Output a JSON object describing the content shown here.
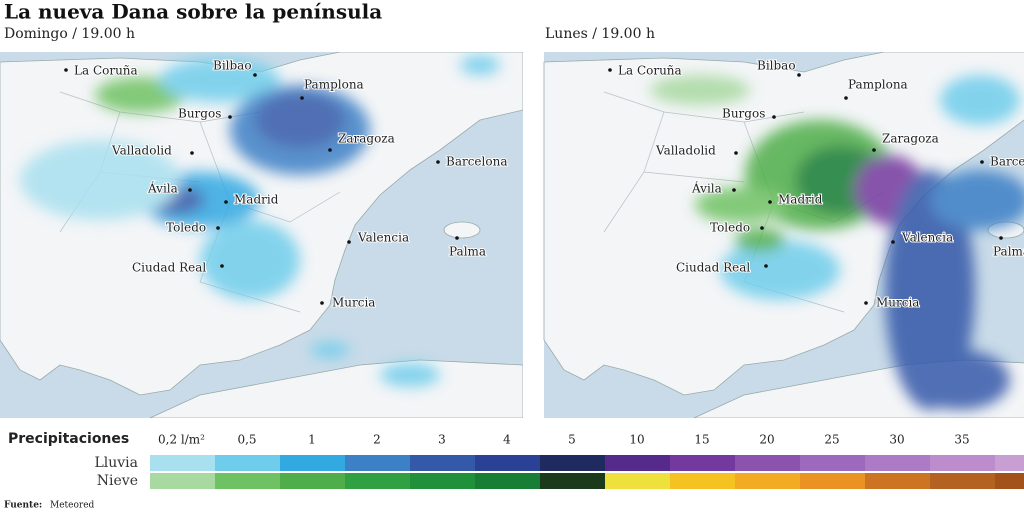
{
  "header": {
    "title": "La nueva Dana sobre la península"
  },
  "maps": [
    {
      "label": "Domingo / 19.00 h",
      "cities": [
        "La Coruña",
        "Bilbao",
        "Pamplona",
        "Burgos",
        "Zaragoza",
        "Barcelona",
        "Valladolid",
        "Ávila",
        "Madrid",
        "Toledo",
        "Valencia",
        "Palma",
        "Ciudad Real",
        "Murcia"
      ]
    },
    {
      "label": "Lunes / 19.00 h",
      "cities": [
        "La Coruña",
        "Bilbao",
        "Pamplona",
        "Burgos",
        "Zaragoza",
        "Barcelona",
        "Valladolid",
        "Ávila",
        "Madrid",
        "Toledo",
        "Valencia",
        "Palma",
        "Ciudad Real",
        "Murcia"
      ]
    }
  ],
  "legend": {
    "title": "Precipitaciones",
    "ticks": [
      "0,2 l/m²",
      "0,5",
      "1",
      "2",
      "3",
      "4",
      "5",
      "10",
      "15",
      "20",
      "25",
      "30",
      "35"
    ],
    "rows": [
      {
        "name": "Lluvia",
        "colors": [
          "#a9e0ef",
          "#6fcdeb",
          "#33a9e2",
          "#3c80c6",
          "#3459a9",
          "#2a4196",
          "#1f2b5e",
          "#562a8a",
          "#74399e",
          "#8b52ae",
          "#9d69bd",
          "#ad7bc5",
          "#bd8ccd",
          "#c79fd3"
        ]
      },
      {
        "name": "Nieve",
        "colors": [
          "#a8d9a0",
          "#6fc263",
          "#4fae4a",
          "#31a042",
          "#21903b",
          "#187d35",
          "#1b3a1c",
          "#eee13e",
          "#f4c322",
          "#f2ab22",
          "#ea9322",
          "#cc7422",
          "#b46222",
          "#a35219"
        ]
      }
    ]
  },
  "footer": {
    "source_label": "Fuente:",
    "source": "Meteored"
  }
}
